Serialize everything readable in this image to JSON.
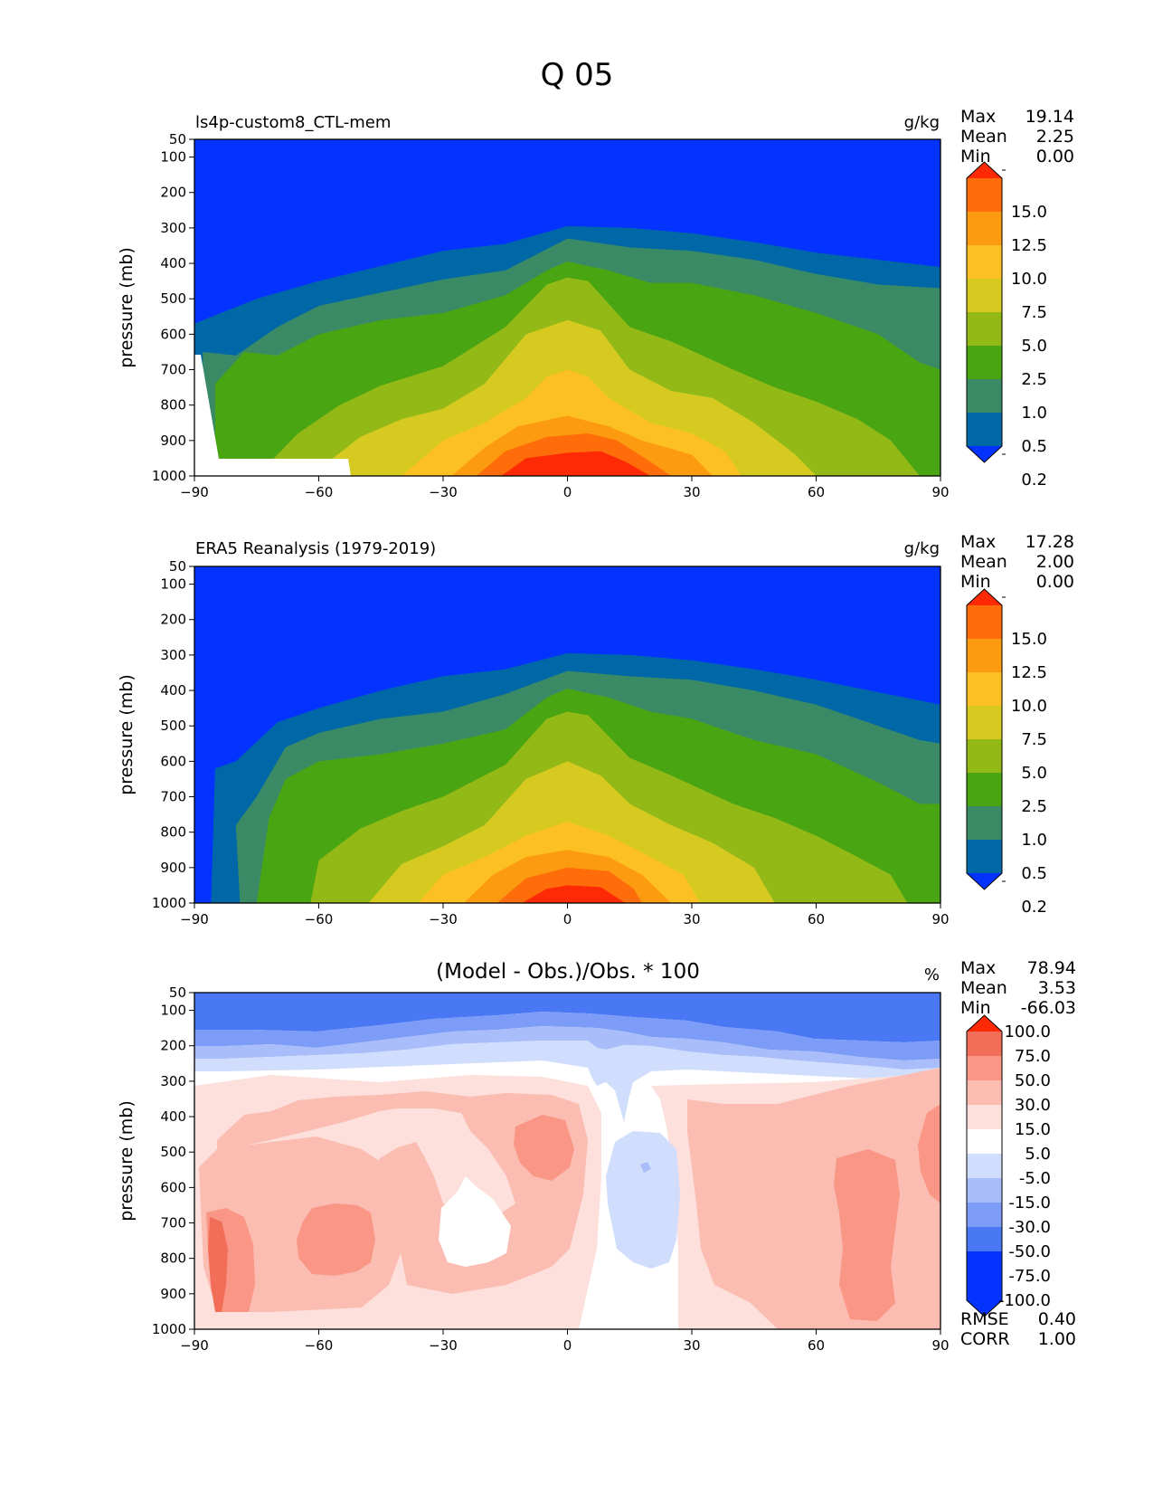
{
  "title": "Q 05",
  "x_ticks": [
    "−90",
    "−60",
    "−30",
    "0",
    "30",
    "60",
    "90"
  ],
  "y_ticks": [
    "50",
    "100",
    "200",
    "300",
    "400",
    "500",
    "600",
    "700",
    "800",
    "900",
    "1000"
  ],
  "ylabel": "pressure (mb)",
  "colors": {
    "q_levels": [
      "#0433ff",
      "#0168a8",
      "#3a8a66",
      "#4aa512",
      "#93b917",
      "#d6ca20",
      "#fdc022",
      "#fd9b10",
      "#fe6d09",
      "#fe2a06"
    ],
    "diff_levels": [
      "#0433ff",
      "#4a78f4",
      "#7c9cf7",
      "#a9bdfa",
      "#d1ddfc",
      "#ffffff",
      "#fde0dc",
      "#fbbcb1",
      "#f99685",
      "#f26e58",
      "#fe2a06"
    ]
  },
  "chart_data": [
    {
      "type": "contour",
      "id": "model",
      "title": "ls4p-custom8_CTL-mem",
      "units": "g/kg",
      "xlabel": "",
      "ylabel": "pressure (mb)",
      "xlim": [
        -90,
        90
      ],
      "ylim": [
        1000,
        50
      ],
      "stats": {
        "max_label": "Max",
        "max": "19.14",
        "mean_label": "Mean",
        "mean": "2.25",
        "min_label": "Min",
        "min": "0.00"
      },
      "colorbar_labels": [
        "15.0",
        "12.5",
        "10.0",
        "7.5",
        "5.0",
        "2.5",
        "1.0",
        "0.5",
        "0.2"
      ],
      "contour_levels": [
        0.2,
        0.5,
        1.0,
        2.5,
        5.0,
        7.5,
        10.0,
        12.5,
        15.0
      ],
      "contours": [
        {
          "level": 0.2,
          "boundary": [
            [
              -90,
              570
            ],
            [
              -75,
              500
            ],
            [
              -60,
              450
            ],
            [
              -30,
              365
            ],
            [
              -15,
              345
            ],
            [
              0,
              295
            ],
            [
              15,
              300
            ],
            [
              30,
              315
            ],
            [
              45,
              340
            ],
            [
              60,
              370
            ],
            [
              75,
              390
            ],
            [
              90,
              410
            ]
          ]
        },
        {
          "level": 0.5,
          "boundary": [
            [
              -88,
              650
            ],
            [
              -80,
              660
            ],
            [
              -70,
              580
            ],
            [
              -60,
              520
            ],
            [
              -30,
              445
            ],
            [
              -15,
              420
            ],
            [
              0,
              330
            ],
            [
              15,
              355
            ],
            [
              30,
              365
            ],
            [
              45,
              390
            ],
            [
              60,
              430
            ],
            [
              75,
              460
            ],
            [
              90,
              470
            ]
          ]
        },
        {
          "level": 1.0,
          "boundary": [
            [
              -85,
              740
            ],
            [
              -78,
              650
            ],
            [
              -70,
              660
            ],
            [
              -60,
              600
            ],
            [
              -45,
              560
            ],
            [
              -30,
              540
            ],
            [
              -15,
              490
            ],
            [
              -5,
              420
            ],
            [
              0,
              395
            ],
            [
              10,
              420
            ],
            [
              20,
              455
            ],
            [
              30,
              455
            ],
            [
              45,
              490
            ],
            [
              60,
              540
            ],
            [
              75,
              600
            ],
            [
              85,
              680
            ],
            [
              90,
              700
            ]
          ]
        },
        {
          "level": 2.5,
          "boundary": [
            [
              -75,
              1000
            ],
            [
              -65,
              880
            ],
            [
              -55,
              800
            ],
            [
              -45,
              745
            ],
            [
              -30,
              690
            ],
            [
              -15,
              580
            ],
            [
              -5,
              460
            ],
            [
              0,
              440
            ],
            [
              5,
              450
            ],
            [
              15,
              580
            ],
            [
              25,
              620
            ],
            [
              40,
              700
            ],
            [
              50,
              750
            ],
            [
              60,
              790
            ],
            [
              70,
              840
            ],
            [
              78,
              900
            ],
            [
              85,
              1000
            ]
          ]
        },
        {
          "level": 5.0,
          "boundary": [
            [
              -62,
              1000
            ],
            [
              -50,
              890
            ],
            [
              -40,
              840
            ],
            [
              -30,
              810
            ],
            [
              -20,
              740
            ],
            [
              -10,
              600
            ],
            [
              0,
              560
            ],
            [
              8,
              590
            ],
            [
              15,
              700
            ],
            [
              25,
              760
            ],
            [
              35,
              780
            ],
            [
              45,
              850
            ],
            [
              55,
              940
            ],
            [
              60,
              1000
            ]
          ]
        },
        {
          "level": 7.5,
          "boundary": [
            [
              -40,
              1000
            ],
            [
              -30,
              900
            ],
            [
              -20,
              850
            ],
            [
              -10,
              780
            ],
            [
              -5,
              720
            ],
            [
              0,
              700
            ],
            [
              5,
              720
            ],
            [
              10,
              780
            ],
            [
              20,
              850
            ],
            [
              30,
              880
            ],
            [
              38,
              930
            ],
            [
              42,
              1000
            ]
          ]
        },
        {
          "level": 10.0,
          "boundary": [
            [
              -28,
              1000
            ],
            [
              -20,
              920
            ],
            [
              -12,
              860
            ],
            [
              0,
              830
            ],
            [
              10,
              860
            ],
            [
              18,
              900
            ],
            [
              30,
              940
            ],
            [
              35,
              1000
            ]
          ]
        },
        {
          "level": 12.5,
          "boundary": [
            [
              -22,
              1000
            ],
            [
              -15,
              930
            ],
            [
              -5,
              890
            ],
            [
              5,
              880
            ],
            [
              12,
              900
            ],
            [
              20,
              960
            ],
            [
              25,
              1000
            ]
          ]
        },
        {
          "level": 15.0,
          "boundary": [
            [
              -16,
              1000
            ],
            [
              -10,
              950
            ],
            [
              0,
              935
            ],
            [
              8,
              930
            ],
            [
              14,
              960
            ],
            [
              20,
              1000
            ]
          ]
        }
      ]
    },
    {
      "type": "contour",
      "id": "obs",
      "title": "ERA5 Reanalysis (1979-2019)",
      "units": "g/kg",
      "xlabel": "",
      "ylabel": "pressure (mb)",
      "xlim": [
        -90,
        90
      ],
      "ylim": [
        1000,
        50
      ],
      "stats": {
        "max_label": "Max",
        "max": "17.28",
        "mean_label": "Mean",
        "mean": "2.00",
        "min_label": "Min",
        "min": "0.00"
      },
      "colorbar_labels": [
        "15.0",
        "12.5",
        "10.0",
        "7.5",
        "5.0",
        "2.5",
        "1.0",
        "0.5",
        "0.2"
      ],
      "contour_levels": [
        0.2,
        0.5,
        1.0,
        2.5,
        5.0,
        7.5,
        10.0,
        12.5,
        15.0
      ],
      "contours": [
        {
          "level": 0.2,
          "boundary": [
            [
              -86,
              1000
            ],
            [
              -85,
              620
            ],
            [
              -80,
              600
            ],
            [
              -70,
              490
            ],
            [
              -60,
              450
            ],
            [
              -45,
              400
            ],
            [
              -30,
              360
            ],
            [
              -15,
              340
            ],
            [
              0,
              295
            ],
            [
              15,
              300
            ],
            [
              30,
              315
            ],
            [
              45,
              340
            ],
            [
              60,
              370
            ],
            [
              75,
              405
            ],
            [
              90,
              440
            ]
          ]
        },
        {
          "level": 0.5,
          "boundary": [
            [
              -79,
              1000
            ],
            [
              -80,
              780
            ],
            [
              -75,
              700
            ],
            [
              -68,
              560
            ],
            [
              -60,
              520
            ],
            [
              -45,
              480
            ],
            [
              -30,
              460
            ],
            [
              -15,
              410
            ],
            [
              0,
              345
            ],
            [
              15,
              360
            ],
            [
              30,
              370
            ],
            [
              45,
              400
            ],
            [
              60,
              440
            ],
            [
              75,
              500
            ],
            [
              85,
              540
            ],
            [
              90,
              550
            ]
          ]
        },
        {
          "level": 1.0,
          "boundary": [
            [
              -75,
              1000
            ],
            [
              -72,
              760
            ],
            [
              -68,
              650
            ],
            [
              -60,
              600
            ],
            [
              -45,
              580
            ],
            [
              -30,
              550
            ],
            [
              -15,
              510
            ],
            [
              -5,
              420
            ],
            [
              0,
              395
            ],
            [
              10,
              420
            ],
            [
              20,
              460
            ],
            [
              30,
              480
            ],
            [
              45,
              540
            ],
            [
              60,
              580
            ],
            [
              75,
              660
            ],
            [
              85,
              720
            ],
            [
              90,
              720
            ]
          ]
        },
        {
          "level": 2.5,
          "boundary": [
            [
              -62,
              1000
            ],
            [
              -60,
              880
            ],
            [
              -50,
              790
            ],
            [
              -40,
              740
            ],
            [
              -30,
              700
            ],
            [
              -15,
              610
            ],
            [
              -5,
              480
            ],
            [
              0,
              460
            ],
            [
              5,
              470
            ],
            [
              15,
              590
            ],
            [
              25,
              640
            ],
            [
              40,
              720
            ],
            [
              50,
              760
            ],
            [
              60,
              810
            ],
            [
              70,
              870
            ],
            [
              78,
              920
            ],
            [
              82,
              1000
            ]
          ]
        },
        {
          "level": 5.0,
          "boundary": [
            [
              -48,
              1000
            ],
            [
              -40,
              890
            ],
            [
              -30,
              840
            ],
            [
              -20,
              780
            ],
            [
              -10,
              650
            ],
            [
              0,
              600
            ],
            [
              8,
              640
            ],
            [
              15,
              720
            ],
            [
              25,
              780
            ],
            [
              35,
              830
            ],
            [
              45,
              900
            ],
            [
              50,
              1000
            ]
          ]
        },
        {
          "level": 7.5,
          "boundary": [
            [
              -36,
              1000
            ],
            [
              -30,
              920
            ],
            [
              -20,
              870
            ],
            [
              -10,
              810
            ],
            [
              0,
              770
            ],
            [
              10,
              810
            ],
            [
              20,
              870
            ],
            [
              28,
              920
            ],
            [
              32,
              1000
            ]
          ]
        },
        {
          "level": 10.0,
          "boundary": [
            [
              -25,
              1000
            ],
            [
              -18,
              920
            ],
            [
              -10,
              870
            ],
            [
              0,
              850
            ],
            [
              10,
              870
            ],
            [
              18,
              920
            ],
            [
              25,
              1000
            ]
          ]
        },
        {
          "level": 12.5,
          "boundary": [
            [
              -17,
              1000
            ],
            [
              -10,
              930
            ],
            [
              0,
              900
            ],
            [
              10,
              910
            ],
            [
              16,
              960
            ],
            [
              18,
              1000
            ]
          ]
        },
        {
          "level": 15.0,
          "boundary": [
            [
              -11,
              1000
            ],
            [
              -5,
              960
            ],
            [
              0,
              950
            ],
            [
              8,
              955
            ],
            [
              14,
              1000
            ]
          ]
        }
      ]
    },
    {
      "type": "contour",
      "id": "diff",
      "title": "(Model - Obs.)/Obs. * 100",
      "units": "%",
      "xlabel": "",
      "ylabel": "pressure (mb)",
      "xlim": [
        -90,
        90
      ],
      "ylim": [
        1000,
        50
      ],
      "stats": {
        "max_label": "Max",
        "max": "78.94",
        "mean_label": "Mean",
        "mean": "3.53",
        "min_label": "Min",
        "min": "-66.03"
      },
      "colorbar_labels": [
        "100.0",
        "75.0",
        "50.0",
        "30.0",
        "15.0",
        "5.0",
        "-5.0",
        "-15.0",
        "-30.0",
        "-50.0",
        "-75.0",
        "-100.0"
      ],
      "contour_levels": [
        -100,
        -75,
        -50,
        -30,
        -15,
        -5,
        5,
        15,
        30,
        50,
        75,
        100
      ],
      "footer": {
        "rmse_label": "RMSE",
        "rmse": "0.40",
        "corr_label": "CORR",
        "corr": "1.00"
      }
    }
  ]
}
